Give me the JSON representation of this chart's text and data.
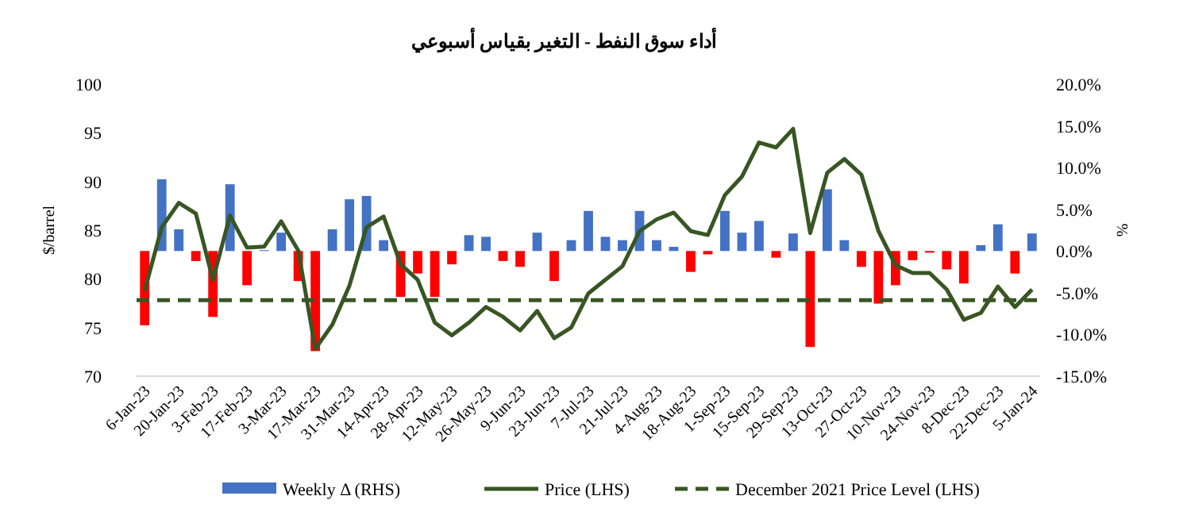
{
  "chart_data": {
    "type": "bar",
    "title": "أداء سوق النفط - التغير بقياس أسبوعي",
    "ylabel": "$/barrel",
    "y2label": "%",
    "categories": [
      "6-Jan-23",
      null,
      "20-Jan-23",
      null,
      "3-Feb-23",
      null,
      "17-Feb-23",
      null,
      "3-Mar-23",
      null,
      "17-Mar-23",
      null,
      "31-Mar-23",
      null,
      "14-Apr-23",
      null,
      "28-Apr-23",
      null,
      "12-May-23",
      null,
      "26-May-23",
      null,
      "9-Jun-23",
      null,
      "23-Jun-23",
      null,
      "7-Jul-23",
      null,
      "21-Jul-23",
      null,
      "4-Aug-23",
      null,
      "18-Aug-23",
      null,
      "1-Sep-23",
      null,
      "15-Sep-23",
      null,
      "29-Sep-23",
      null,
      "13-Oct-23",
      null,
      "27-Oct-23",
      null,
      "10-Nov-23",
      null,
      "24-Nov-23",
      null,
      "8-Dec-23",
      null,
      "22-Dec-23",
      null,
      "5-Jan-24"
    ],
    "series": [
      {
        "name": "Weekly Δ (RHS)",
        "axis": "y2",
        "color": "#4472c4",
        "values": [
          -8.9,
          8.6,
          2.6,
          -1.2,
          -7.9,
          8.0,
          -4.1,
          0.1,
          2.2,
          -3.6,
          -12.0,
          2.6,
          6.2,
          6.6,
          1.3,
          -5.5,
          -2.7,
          -5.5,
          -1.6,
          1.9,
          1.7,
          -1.2,
          -1.9,
          2.2,
          -3.6,
          1.3,
          4.8,
          1.7,
          1.3,
          4.8,
          1.3,
          0.5,
          -2.5,
          -0.4,
          4.8,
          2.2,
          3.6,
          -0.8,
          2.1,
          -11.5,
          7.4,
          1.3,
          -1.9,
          -6.3,
          -4.1,
          -1.1,
          -0.2,
          -2.2,
          -3.9,
          0.7,
          3.2,
          -2.7,
          2.1
        ],
        "colors": [
          "#ff0000",
          "#4472c4",
          "#4472c4",
          "#ff0000",
          "#ff0000",
          "#4472c4",
          "#ff0000",
          "#4472c4",
          "#4472c4",
          "#ff0000",
          "#ff0000",
          "#4472c4",
          "#4472c4",
          "#4472c4",
          "#4472c4",
          "#ff0000",
          "#ff0000",
          "#ff0000",
          "#ff0000",
          "#4472c4",
          "#4472c4",
          "#ff0000",
          "#ff0000",
          "#4472c4",
          "#ff0000",
          "#4472c4",
          "#4472c4",
          "#4472c4",
          "#4472c4",
          "#4472c4",
          "#4472c4",
          "#4472c4",
          "#ff0000",
          "#ff0000",
          "#4472c4",
          "#4472c4",
          "#4472c4",
          "#ff0000",
          "#4472c4",
          "#ff0000",
          "#4472c4",
          "#4472c4",
          "#ff0000",
          "#ff0000",
          "#ff0000",
          "#ff0000",
          "#ff0000",
          "#ff0000",
          "#ff0000",
          "#4472c4",
          "#4472c4",
          "#ff0000",
          "#4472c4"
        ]
      },
      {
        "name": "Price (LHS)",
        "type": "line",
        "color": "#375623",
        "values": [
          78.8,
          85.3,
          87.8,
          86.7,
          79.9,
          86.5,
          83.2,
          83.3,
          85.9,
          82.9,
          72.8,
          75.3,
          79.3,
          85.3,
          86.4,
          81.5,
          79.9,
          75.5,
          74.2,
          75.5,
          77.1,
          76.1,
          74.7,
          76.7,
          73.9,
          75.0,
          78.5,
          79.9,
          81.3,
          84.9,
          86.1,
          86.8,
          84.9,
          84.5,
          88.6,
          90.5,
          94.0,
          93.5,
          95.4,
          84.7,
          90.9,
          92.3,
          90.7,
          84.9,
          81.4,
          80.6,
          80.6,
          78.9,
          75.8,
          76.5,
          79.2,
          77.1,
          78.9
        ]
      }
    ],
    "ref_lines": [
      {
        "axis": "y",
        "value": 77.8,
        "label": "December 2021 Price Level (LHS)",
        "color": "#375623",
        "line_style": "dashed"
      }
    ],
    "ylim": [
      70,
      100
    ],
    "yticks": [
      70,
      75,
      80,
      85,
      90,
      95,
      100
    ],
    "y2lim": [
      -15,
      20
    ],
    "y2ticks": [
      {
        "value": -15,
        "label": "-15.0%"
      },
      {
        "value": -10,
        "label": "-10.0%"
      },
      {
        "value": -5,
        "label": "-5.0%"
      },
      {
        "value": 0,
        "label": "0.0%"
      },
      {
        "value": 5,
        "label": "5.0%"
      },
      {
        "value": 10,
        "label": "10.0%"
      },
      {
        "value": 15,
        "label": "15.0%"
      },
      {
        "value": 20,
        "label": "20.0%"
      }
    ],
    "grid": false,
    "legend": "bottom"
  }
}
